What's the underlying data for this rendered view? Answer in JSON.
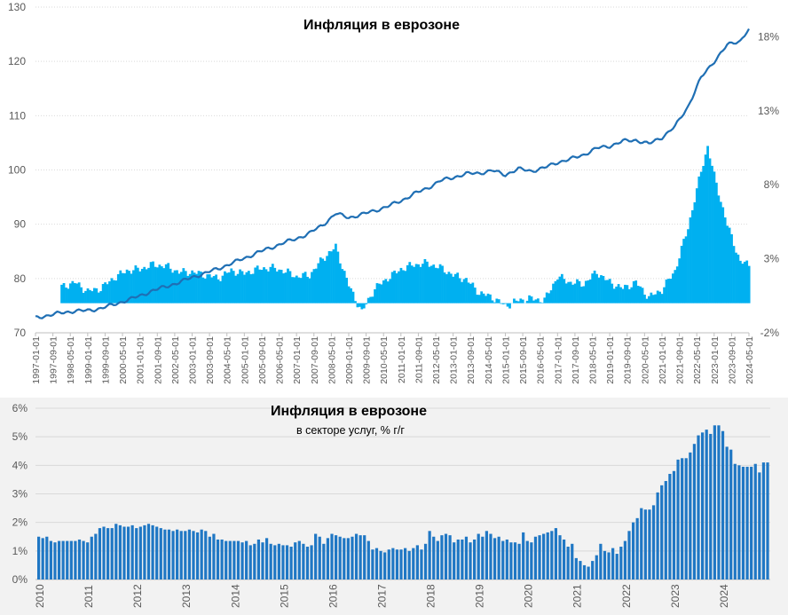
{
  "chart_data": [
    {
      "type": "line",
      "title": "Инфляция в еврозоне",
      "grid": true,
      "legend": "none",
      "left_axis": {
        "range": [
          70,
          130
        ],
        "ticks": [
          "70",
          "80",
          "90",
          "100",
          "110",
          "120",
          "130"
        ]
      },
      "right_axis": {
        "range": [
          -2.0,
          20.0
        ],
        "ticks": [
          "-2%",
          "3%",
          "8%",
          "13%",
          "18%"
        ],
        "tick_values": [
          -2,
          3,
          8,
          13,
          18
        ]
      },
      "x_range": [
        "1997-01-01",
        "2024-05-01"
      ],
      "x_tick_labels": [
        "1997-01-01",
        "1997-09-01",
        "1998-05-01",
        "1999-01-01",
        "1999-09-01",
        "2000-05-01",
        "2001-01-01",
        "2001-09-01",
        "2002-05-01",
        "2003-01-01",
        "2003-09-01",
        "2004-05-01",
        "2005-01-01",
        "2005-09-01",
        "2006-05-01",
        "2007-01-01",
        "2007-09-01",
        "2008-05-01",
        "2009-01-01",
        "2009-09-01",
        "2010-05-01",
        "2011-01-01",
        "2011-09-01",
        "2012-05-01",
        "2013-01-01",
        "2013-09-01",
        "2014-05-01",
        "2015-01-01",
        "2015-09-01",
        "2016-05-01",
        "2017-01-01",
        "2017-09-01",
        "2018-05-01",
        "2019-01-01",
        "2019-09-01",
        "2020-05-01",
        "2021-01-01",
        "2021-09-01",
        "2022-05-01",
        "2023-01-01",
        "2023-09-01",
        "2024-05-01"
      ],
      "series": [
        {
          "kind": "line",
          "axis": "left",
          "color": "#1f6fb4",
          "points": [
            [
              "1997-01-01",
              72.8
            ],
            [
              "1997-07-01",
              73.2
            ],
            [
              "1998-01-01",
              73.7
            ],
            [
              "1998-07-01",
              74.0
            ],
            [
              "1999-01-01",
              74.1
            ],
            [
              "1999-07-01",
              74.5
            ],
            [
              "2000-01-01",
              75.2
            ],
            [
              "2000-07-01",
              76.0
            ],
            [
              "2001-01-01",
              76.8
            ],
            [
              "2001-07-01",
              77.8
            ],
            [
              "2002-01-01",
              78.5
            ],
            [
              "2002-07-01",
              79.3
            ],
            [
              "2003-01-01",
              80.2
            ],
            [
              "2003-07-01",
              81.0
            ],
            [
              "2004-01-01",
              81.8
            ],
            [
              "2004-07-01",
              82.8
            ],
            [
              "2005-01-01",
              83.7
            ],
            [
              "2005-07-01",
              84.8
            ],
            [
              "2006-01-01",
              85.6
            ],
            [
              "2006-07-01",
              86.6
            ],
            [
              "2007-01-01",
              87.3
            ],
            [
              "2007-07-01",
              88.4
            ],
            [
              "2008-01-01",
              89.8
            ],
            [
              "2008-07-01",
              92.0
            ],
            [
              "2009-01-01",
              91.2
            ],
            [
              "2009-07-01",
              91.8
            ],
            [
              "2010-01-01",
              92.5
            ],
            [
              "2010-07-01",
              93.3
            ],
            [
              "2011-01-01",
              94.3
            ],
            [
              "2011-07-01",
              95.6
            ],
            [
              "2012-01-01",
              96.6
            ],
            [
              "2012-07-01",
              98.0
            ],
            [
              "2013-01-01",
              98.6
            ],
            [
              "2013-07-01",
              99.3
            ],
            [
              "2014-01-01",
              99.4
            ],
            [
              "2014-07-01",
              99.9
            ],
            [
              "2015-01-01",
              99.1
            ],
            [
              "2015-07-01",
              100.2
            ],
            [
              "2016-01-01",
              99.8
            ],
            [
              "2016-07-01",
              100.4
            ],
            [
              "2017-01-01",
              101.4
            ],
            [
              "2017-07-01",
              102.0
            ],
            [
              "2018-01-01",
              102.8
            ],
            [
              "2018-07-01",
              104.0
            ],
            [
              "2019-01-01",
              104.4
            ],
            [
              "2019-07-01",
              105.3
            ],
            [
              "2020-01-01",
              105.5
            ],
            [
              "2020-07-01",
              104.8
            ],
            [
              "2021-01-01",
              106.0
            ],
            [
              "2021-07-01",
              108.0
            ],
            [
              "2022-01-01",
              111.7
            ],
            [
              "2022-07-01",
              117.0
            ],
            [
              "2023-01-01",
              120.0
            ],
            [
              "2023-07-01",
              123.0
            ],
            [
              "2024-01-01",
              123.8
            ],
            [
              "2024-05-01",
              126.0
            ]
          ]
        },
        {
          "kind": "area",
          "axis": "right",
          "color": "#00b0f0",
          "baseline": 0,
          "points": [
            [
              "1998-01-01",
              1.1
            ],
            [
              "1998-07-01",
              1.4
            ],
            [
              "1999-01-01",
              0.8
            ],
            [
              "1999-07-01",
              1.0
            ],
            [
              "2000-01-01",
              1.7
            ],
            [
              "2000-07-01",
              2.2
            ],
            [
              "2001-01-01",
              2.3
            ],
            [
              "2001-07-01",
              2.6
            ],
            [
              "2002-01-01",
              2.5
            ],
            [
              "2002-07-01",
              2.1
            ],
            [
              "2003-01-01",
              2.1
            ],
            [
              "2003-07-01",
              1.9
            ],
            [
              "2004-01-01",
              1.7
            ],
            [
              "2004-07-01",
              2.2
            ],
            [
              "2005-01-01",
              2.0
            ],
            [
              "2005-07-01",
              2.3
            ],
            [
              "2006-01-01",
              2.4
            ],
            [
              "2006-07-01",
              2.2
            ],
            [
              "2007-01-01",
              1.8
            ],
            [
              "2007-07-01",
              1.9
            ],
            [
              "2008-01-01",
              3.0
            ],
            [
              "2008-07-01",
              3.8
            ],
            [
              "2009-01-01",
              1.2
            ],
            [
              "2009-07-01",
              -0.6
            ],
            [
              "2010-01-01",
              1.0
            ],
            [
              "2010-07-01",
              1.7
            ],
            [
              "2011-01-01",
              2.3
            ],
            [
              "2011-07-01",
              2.6
            ],
            [
              "2012-01-01",
              2.7
            ],
            [
              "2012-07-01",
              2.4
            ],
            [
              "2013-01-01",
              1.9
            ],
            [
              "2013-07-01",
              1.6
            ],
            [
              "2014-01-01",
              0.7
            ],
            [
              "2014-07-01",
              0.4
            ],
            [
              "2015-01-01",
              -0.2
            ],
            [
              "2015-07-01",
              0.2
            ],
            [
              "2016-01-01",
              0.3
            ],
            [
              "2016-07-01",
              0.2
            ],
            [
              "2017-01-01",
              1.8
            ],
            [
              "2017-07-01",
              1.4
            ],
            [
              "2018-01-01",
              1.3
            ],
            [
              "2018-07-01",
              2.1
            ],
            [
              "2019-01-01",
              1.4
            ],
            [
              "2019-07-01",
              1.0
            ],
            [
              "2020-01-01",
              1.4
            ],
            [
              "2020-07-01",
              0.4
            ],
            [
              "2021-01-01",
              0.9
            ],
            [
              "2021-07-01",
              2.2
            ],
            [
              "2022-01-01",
              5.1
            ],
            [
              "2022-07-01",
              8.9
            ],
            [
              "2022-10-01",
              10.6
            ],
            [
              "2023-01-01",
              8.6
            ],
            [
              "2023-07-01",
              5.3
            ],
            [
              "2024-01-01",
              2.8
            ],
            [
              "2024-05-01",
              2.6
            ]
          ]
        }
      ]
    },
    {
      "type": "bar",
      "title": "Инфляция в еврозоне",
      "subtitle": "в секторе услуг, % г/г",
      "grid": true,
      "legend": "none",
      "color": "#1f77c4",
      "ylim": [
        0,
        6
      ],
      "y_tick_labels": [
        "0%",
        "1%",
        "2%",
        "3%",
        "4%",
        "5%",
        "6%"
      ],
      "x_tick_labels": [
        "2010",
        "2011",
        "2012",
        "2013",
        "2014",
        "2015",
        "2016",
        "2017",
        "2018",
        "2019",
        "2020",
        "2021",
        "2022",
        "2023",
        "2024"
      ],
      "x_range": [
        "2010-01",
        "2024-05"
      ],
      "values": [
        1.5,
        1.45,
        1.5,
        1.35,
        1.3,
        1.35,
        1.35,
        1.35,
        1.35,
        1.35,
        1.4,
        1.35,
        1.3,
        1.5,
        1.6,
        1.8,
        1.85,
        1.8,
        1.8,
        1.95,
        1.9,
        1.85,
        1.85,
        1.9,
        1.8,
        1.85,
        1.9,
        1.95,
        1.9,
        1.85,
        1.8,
        1.75,
        1.75,
        1.7,
        1.75,
        1.7,
        1.7,
        1.75,
        1.7,
        1.65,
        1.75,
        1.7,
        1.5,
        1.6,
        1.4,
        1.4,
        1.35,
        1.35,
        1.35,
        1.35,
        1.3,
        1.35,
        1.2,
        1.25,
        1.4,
        1.3,
        1.45,
        1.25,
        1.2,
        1.25,
        1.2,
        1.2,
        1.15,
        1.3,
        1.35,
        1.25,
        1.15,
        1.2,
        1.6,
        1.5,
        1.25,
        1.45,
        1.6,
        1.55,
        1.5,
        1.45,
        1.45,
        1.5,
        1.6,
        1.55,
        1.55,
        1.35,
        1.05,
        1.1,
        1.0,
        0.95,
        1.05,
        1.1,
        1.05,
        1.05,
        1.1,
        1.0,
        1.1,
        1.2,
        1.05,
        1.25,
        1.7,
        1.5,
        1.35,
        1.55,
        1.6,
        1.55,
        1.3,
        1.4,
        1.4,
        1.5,
        1.3,
        1.4,
        1.6,
        1.5,
        1.7,
        1.6,
        1.45,
        1.5,
        1.35,
        1.4,
        1.3,
        1.3,
        1.25,
        1.65,
        1.35,
        1.3,
        1.5,
        1.55,
        1.6,
        1.65,
        1.7,
        1.8,
        1.55,
        1.4,
        1.15,
        1.25,
        0.75,
        0.65,
        0.5,
        0.45,
        0.65,
        0.85,
        1.25,
        1.0,
        0.95,
        1.1,
        0.9,
        1.15,
        1.35,
        1.7,
        2.0,
        2.15,
        2.5,
        2.45,
        2.45,
        2.6,
        3.05,
        3.3,
        3.45,
        3.7,
        3.8,
        4.2,
        4.25,
        4.25,
        4.45,
        4.75,
        5.05,
        5.15,
        5.25,
        5.1,
        5.4,
        5.4,
        5.2,
        4.65,
        4.55,
        4.05,
        4.0,
        3.95,
        3.95,
        3.95,
        4.05,
        3.75,
        4.1,
        4.1
      ]
    }
  ]
}
